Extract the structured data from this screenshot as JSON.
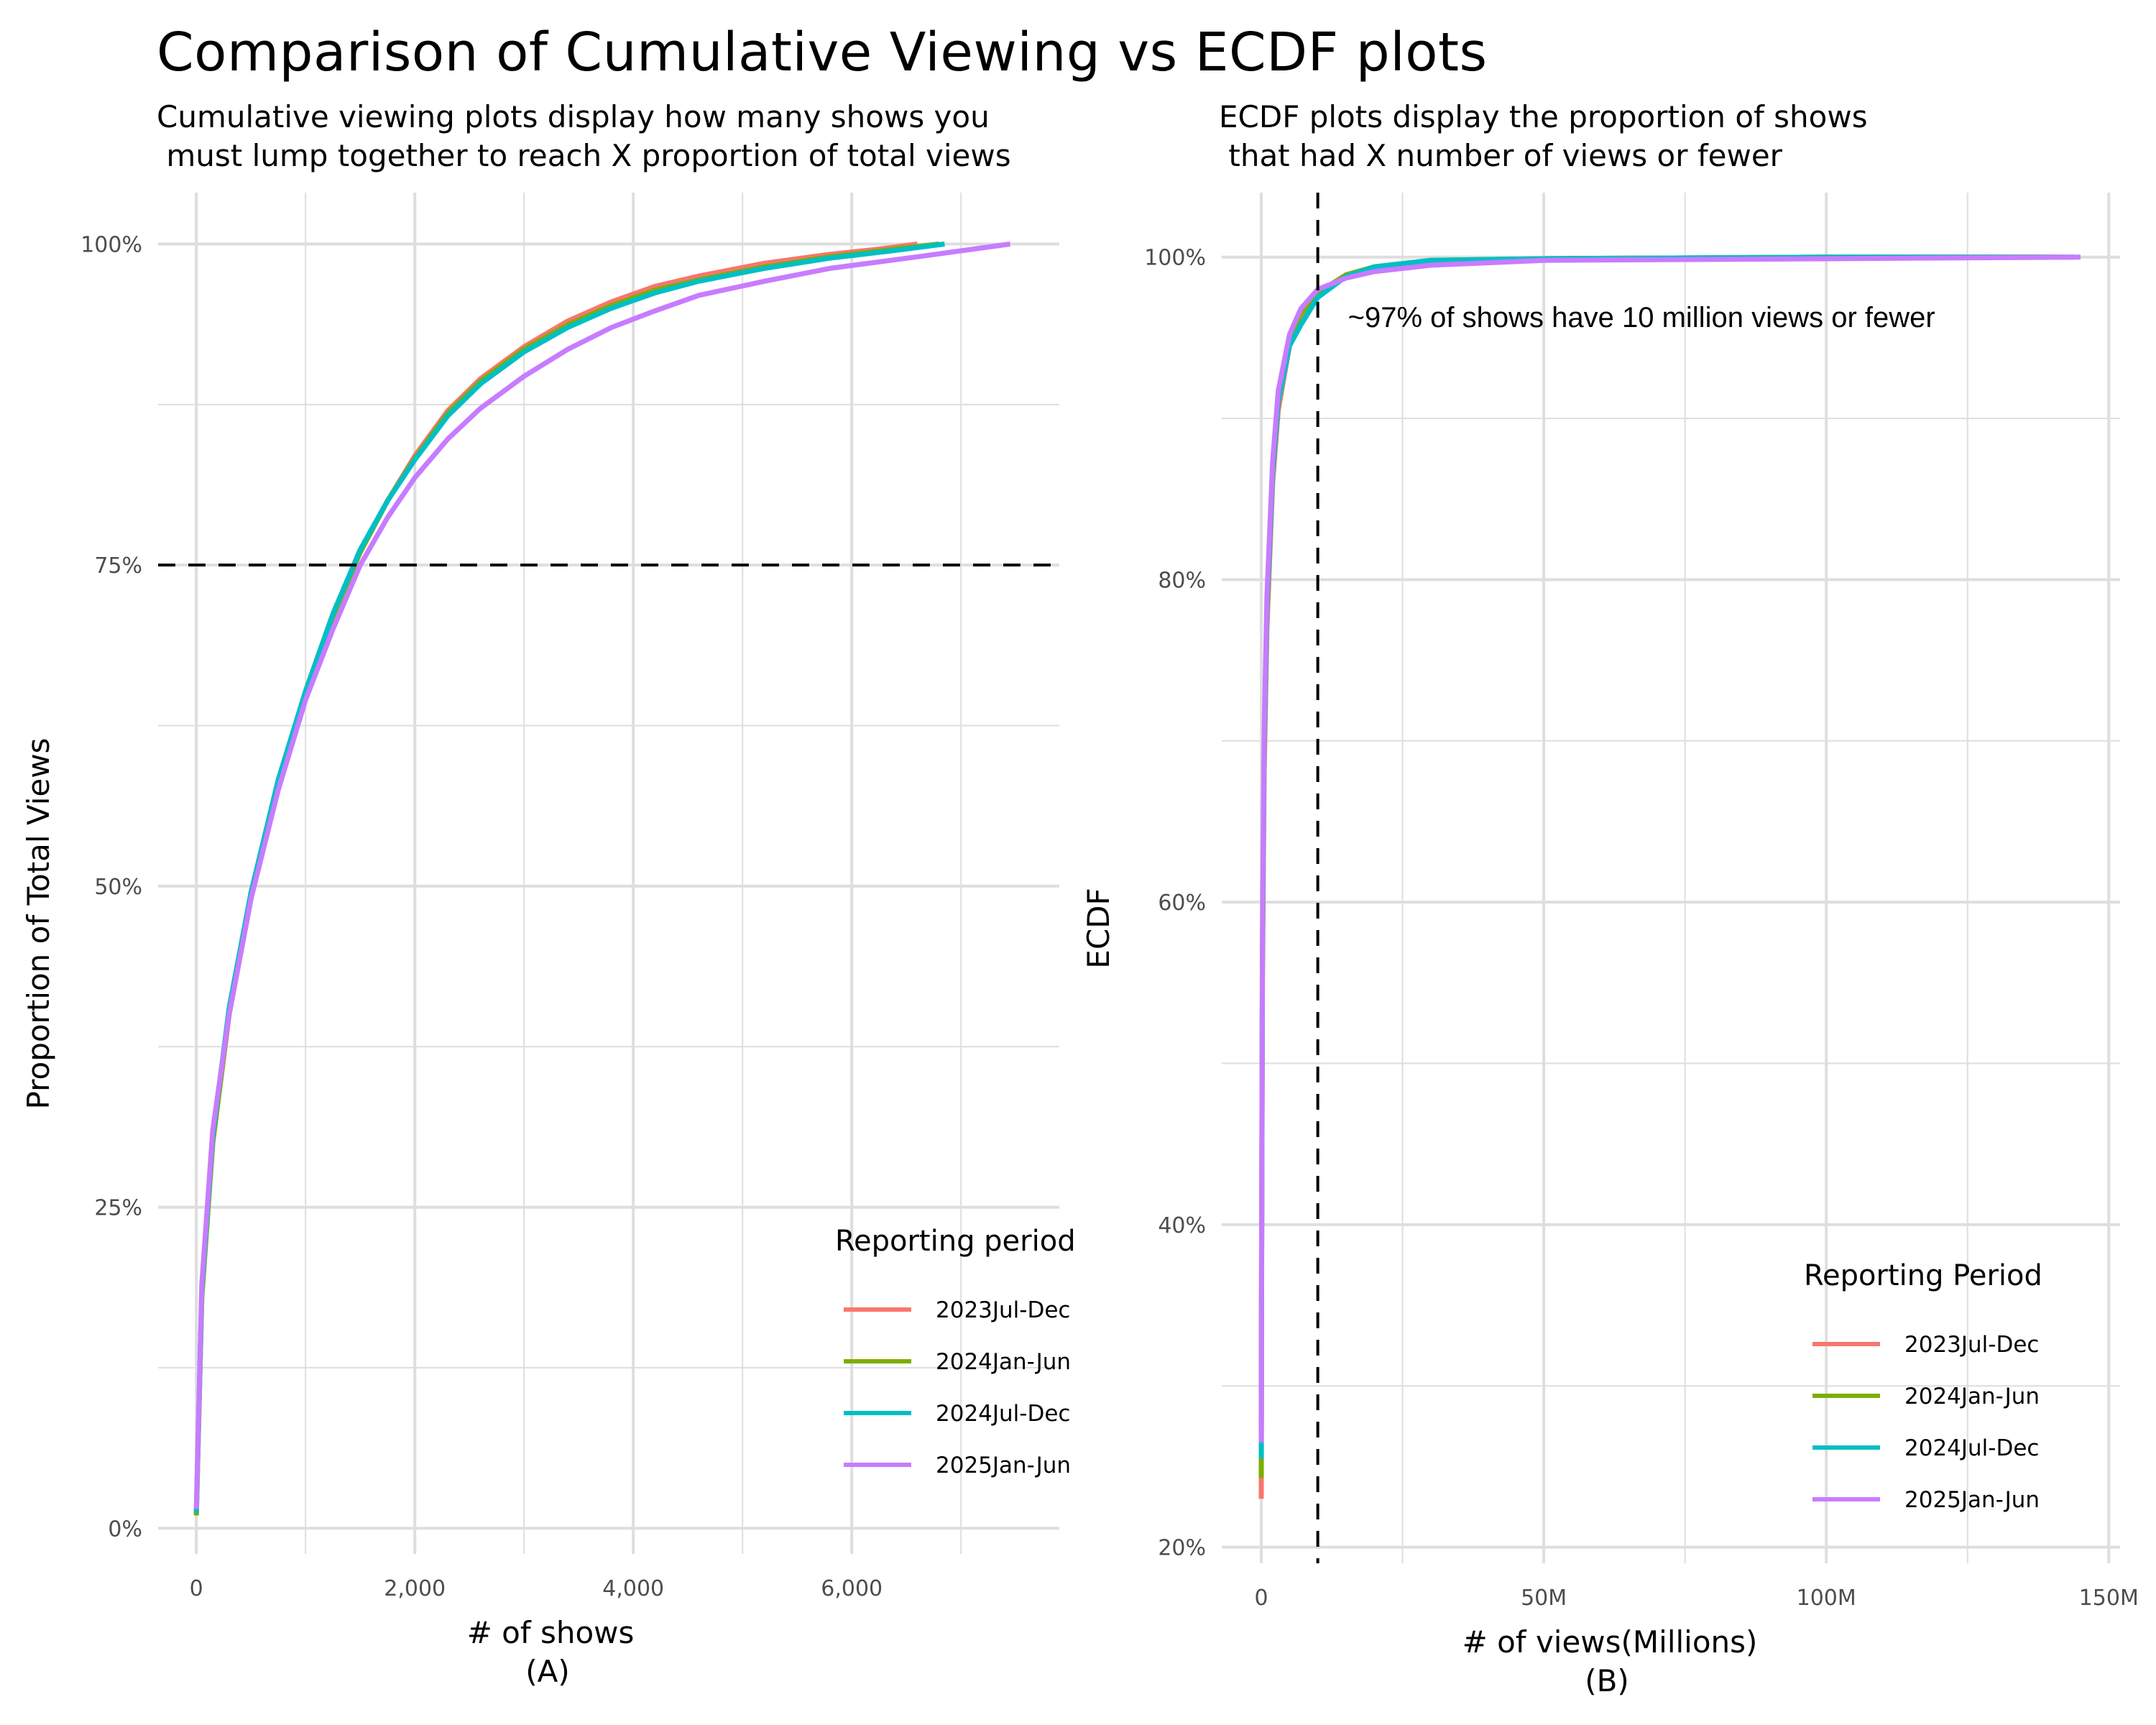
{
  "title": "Comparison of Cumulative Viewing vs ECDF plots",
  "colors": {
    "2023Jul-Dec": "#F8766D",
    "2024Jan-Jun": "#7CAE00",
    "2024Jul-Dec": "#00BFC4",
    "2025Jan-Jun": "#C77CFF",
    "grid": "#dedede",
    "reference": "#000000"
  },
  "chart_data": [
    {
      "id": "A",
      "type": "line",
      "subtitle": "Cumulative viewing plots display how many shows you\n must lump together to reach X proportion of total views",
      "xlabel": "# of shows",
      "panel_label": "(A)",
      "ylabel": "Proportion of Total Views",
      "xlim": [
        -350,
        7900
      ],
      "ylim": [
        -0.02,
        1.04
      ],
      "x_ticks": [
        0,
        2000,
        4000,
        6000
      ],
      "x_tick_labels": [
        "0",
        "2,000",
        "4,000",
        "6,000"
      ],
      "y_ticks": [
        0,
        0.25,
        0.5,
        0.75,
        1.0
      ],
      "y_tick_labels": [
        "0%",
        "25%",
        "50%",
        "75%",
        "100%"
      ],
      "grid": true,
      "hline": 0.75,
      "legend": {
        "title": "Reporting period",
        "position": "bottom-right"
      },
      "series": [
        {
          "name": "2023Jul-Dec",
          "x": [
            0,
            50,
            150,
            300,
            500,
            750,
            1000,
            1250,
            1500,
            1750,
            2000,
            2300,
            2600,
            3000,
            3400,
            3800,
            4200,
            4600,
            5200,
            5800,
            6250,
            6600
          ],
          "y": [
            0.01,
            0.18,
            0.3,
            0.4,
            0.49,
            0.58,
            0.65,
            0.71,
            0.76,
            0.8,
            0.835,
            0.87,
            0.895,
            0.92,
            0.94,
            0.955,
            0.967,
            0.975,
            0.985,
            0.992,
            0.996,
            1.0
          ]
        },
        {
          "name": "2024Jan-Jun",
          "x": [
            0,
            50,
            150,
            300,
            500,
            750,
            1000,
            1250,
            1500,
            1750,
            2000,
            2300,
            2600,
            3000,
            3400,
            3800,
            4200,
            4600,
            5200,
            5800,
            6400,
            6800
          ],
          "y": [
            0.01,
            0.18,
            0.3,
            0.4,
            0.49,
            0.58,
            0.65,
            0.71,
            0.76,
            0.8,
            0.833,
            0.868,
            0.893,
            0.918,
            0.937,
            0.952,
            0.964,
            0.972,
            0.982,
            0.99,
            0.996,
            1.0
          ]
        },
        {
          "name": "2024Jul-Dec",
          "x": [
            0,
            50,
            150,
            300,
            500,
            750,
            1000,
            1250,
            1500,
            1750,
            2000,
            2300,
            2600,
            3000,
            3400,
            3800,
            4200,
            4600,
            5200,
            5800,
            6400,
            6850
          ],
          "y": [
            0.012,
            0.185,
            0.305,
            0.405,
            0.495,
            0.583,
            0.652,
            0.712,
            0.762,
            0.8,
            0.832,
            0.866,
            0.891,
            0.916,
            0.935,
            0.95,
            0.962,
            0.971,
            0.981,
            0.989,
            0.995,
            1.0
          ]
        },
        {
          "name": "2025Jan-Jun",
          "x": [
            0,
            50,
            150,
            300,
            500,
            750,
            1000,
            1250,
            1500,
            1750,
            2000,
            2300,
            2600,
            3000,
            3400,
            3800,
            4200,
            4600,
            5200,
            5800,
            6600,
            7450
          ],
          "y": [
            0.015,
            0.19,
            0.31,
            0.4,
            0.49,
            0.575,
            0.645,
            0.7,
            0.75,
            0.787,
            0.818,
            0.848,
            0.872,
            0.897,
            0.918,
            0.935,
            0.948,
            0.96,
            0.971,
            0.981,
            0.99,
            1.0
          ]
        }
      ]
    },
    {
      "id": "B",
      "type": "line",
      "subtitle": "ECDF plots display the proportion of shows\n that had X number of views or fewer",
      "xlabel": "# of views(Millions)",
      "panel_label": "(B)",
      "ylabel": "ECDF",
      "xlim": [
        -7,
        152
      ],
      "ylim": [
        0.19,
        1.04
      ],
      "x_ticks": [
        0,
        50,
        100,
        150
      ],
      "x_tick_labels": [
        "0",
        "50M",
        "100M",
        "150M"
      ],
      "y_ticks": [
        0.2,
        0.4,
        0.6,
        0.8,
        1.0
      ],
      "y_tick_labels": [
        "20%",
        "40%",
        "60%",
        "80%",
        "100%"
      ],
      "grid": true,
      "vline": 10,
      "annotation": "~97% of shows have 10 million views or fewer",
      "legend": {
        "title": "Reporting Period",
        "position": "bottom-right"
      },
      "series": [
        {
          "name": "2023Jul-Dec",
          "x": [
            0,
            0.05,
            0.2,
            0.5,
            1,
            2,
            3,
            5,
            7,
            10,
            15,
            20,
            30,
            50,
            100,
            140
          ],
          "y": [
            0.23,
            0.35,
            0.55,
            0.68,
            0.77,
            0.86,
            0.905,
            0.945,
            0.963,
            0.977,
            0.988,
            0.993,
            0.997,
            0.999,
            1.0,
            1.0
          ]
        },
        {
          "name": "2024Jan-Jun",
          "x": [
            0,
            0.05,
            0.2,
            0.5,
            1,
            2,
            3,
            5,
            7,
            10,
            15,
            20,
            30,
            50,
            100,
            142
          ],
          "y": [
            0.243,
            0.36,
            0.56,
            0.69,
            0.78,
            0.865,
            0.91,
            0.948,
            0.965,
            0.978,
            0.989,
            0.994,
            0.998,
            0.999,
            1.0,
            1.0
          ]
        },
        {
          "name": "2024Jul-Dec",
          "x": [
            0,
            0.05,
            0.2,
            0.5,
            1,
            2,
            3,
            5,
            7,
            10,
            15,
            20,
            30,
            50,
            100,
            144
          ],
          "y": [
            0.255,
            0.37,
            0.565,
            0.695,
            0.782,
            0.866,
            0.91,
            0.945,
            0.958,
            0.975,
            0.988,
            0.994,
            0.998,
            0.999,
            1.0,
            1.0
          ]
        },
        {
          "name": "2025Jan-Jun",
          "x": [
            0,
            0.05,
            0.2,
            0.5,
            1,
            2,
            3,
            5,
            7,
            10,
            15,
            20,
            30,
            50,
            100,
            145
          ],
          "y": [
            0.265,
            0.38,
            0.575,
            0.705,
            0.79,
            0.873,
            0.917,
            0.952,
            0.968,
            0.98,
            0.987,
            0.991,
            0.995,
            0.998,
            0.999,
            1.0
          ]
        }
      ]
    }
  ]
}
